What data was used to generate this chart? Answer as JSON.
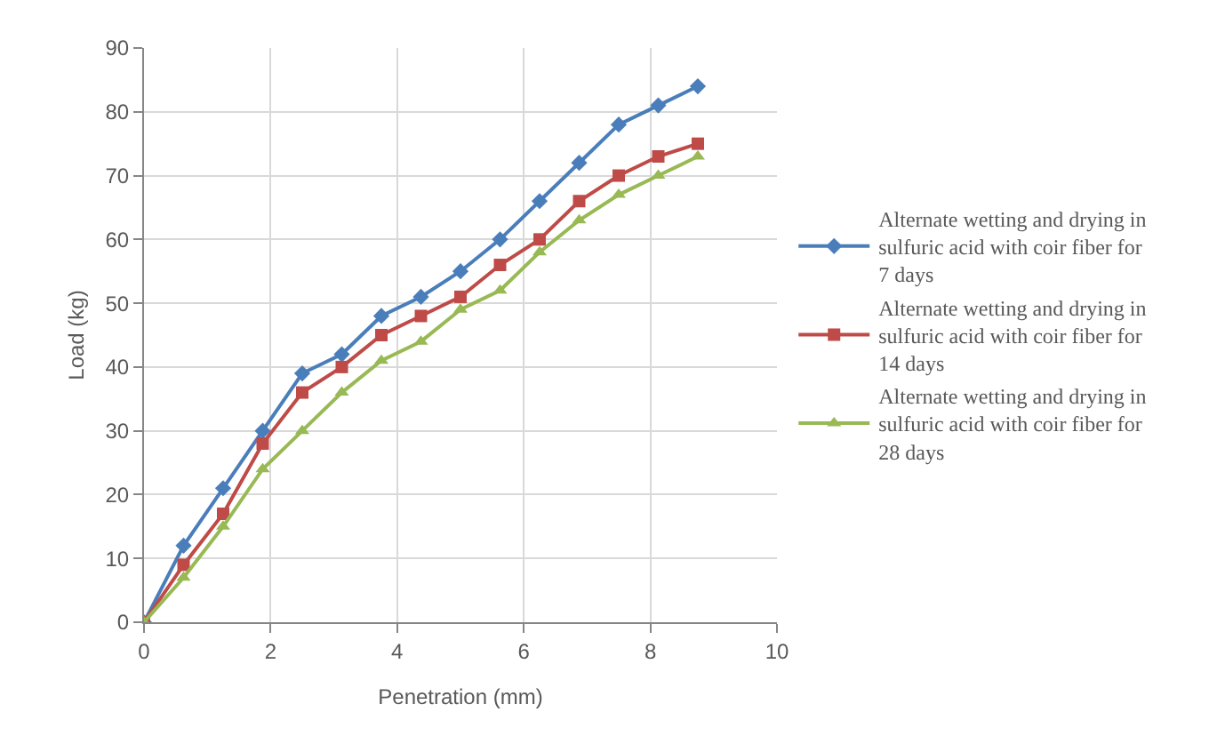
{
  "chart_data": {
    "type": "line",
    "xlabel": "Penetration (mm)",
    "ylabel": "Load (kg)",
    "x": [
      0,
      0.625,
      1.25,
      1.875,
      2.5,
      3.125,
      3.75,
      4.375,
      5,
      5.625,
      6.25,
      6.875,
      7.5,
      8.125,
      8.75
    ],
    "series": [
      {
        "name": "Alternate wetting and drying in sulfuric acid with coir fiber for 7 days",
        "color": "#4a7ebb",
        "marker": "diamond",
        "values": [
          0,
          12,
          21,
          30,
          39,
          42,
          48,
          51,
          55,
          60,
          66,
          72,
          78,
          81,
          84
        ]
      },
      {
        "name": "Alternate wetting and drying in sulfuric acid with coir fiber for 14 days",
        "color": "#be4b48",
        "marker": "square",
        "values": [
          0,
          9,
          17,
          28,
          36,
          40,
          45,
          48,
          51,
          56,
          60,
          66,
          70,
          73,
          75
        ]
      },
      {
        "name": "Alternate wetting and drying in sulfuric acid with coir fiber for 28 days",
        "color": "#98b954",
        "marker": "triangle",
        "values": [
          0,
          7,
          15,
          24,
          30,
          36,
          41,
          44,
          49,
          52,
          58,
          63,
          67,
          70,
          73
        ]
      }
    ],
    "xlim": [
      0,
      10
    ],
    "xticks": [
      0,
      2,
      4,
      6,
      8,
      10
    ],
    "ylim": [
      0,
      90
    ],
    "yticks": [
      0,
      10,
      20,
      30,
      40,
      50,
      60,
      70,
      80,
      90
    ],
    "grid": true,
    "legend": "right",
    "line_style": "solid"
  }
}
